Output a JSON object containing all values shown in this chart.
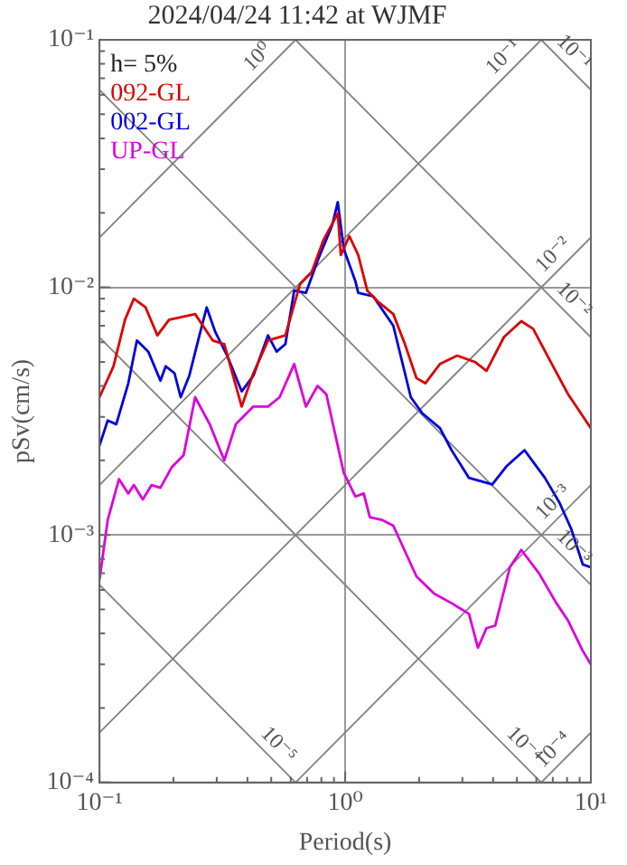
{
  "chart_data": {
    "type": "line",
    "title": "2024/04/24 11:42 at WJMF",
    "xlabel": "Period(s)",
    "ylabel": "pSv(cm/s)",
    "legend_title": "h= 5%",
    "legend": "top left",
    "log": "xy",
    "grid": true,
    "xlim": [
      0.1,
      10
    ],
    "ylim": [
      0.0001,
      0.1
    ],
    "xticks": [
      {
        "value": 0.1,
        "label": "10⁻¹"
      },
      {
        "value": 0.2,
        "label": null
      },
      {
        "value": 0.3,
        "label": null
      },
      {
        "value": 0.4,
        "label": null
      },
      {
        "value": 0.5,
        "label": null
      },
      {
        "value": 0.6,
        "label": null
      },
      {
        "value": 0.7,
        "label": null
      },
      {
        "value": 0.8,
        "label": null
      },
      {
        "value": 0.9,
        "label": null
      },
      {
        "value": 1,
        "label": "10⁰"
      },
      {
        "value": 2,
        "label": null
      },
      {
        "value": 3,
        "label": null
      },
      {
        "value": 4,
        "label": null
      },
      {
        "value": 5,
        "label": null
      },
      {
        "value": 6,
        "label": null
      },
      {
        "value": 7,
        "label": null
      },
      {
        "value": 8,
        "label": null
      },
      {
        "value": 9,
        "label": null
      },
      {
        "value": 10,
        "label": "10¹"
      }
    ],
    "yticks": [
      {
        "value": 0.0001,
        "label": "10⁻⁴"
      },
      {
        "value": 0.0002,
        "label": null
      },
      {
        "value": 0.0003,
        "label": null
      },
      {
        "value": 0.0004,
        "label": null
      },
      {
        "value": 0.0005,
        "label": null
      },
      {
        "value": 0.0006,
        "label": null
      },
      {
        "value": 0.0007,
        "label": null
      },
      {
        "value": 0.0008,
        "label": null
      },
      {
        "value": 0.0009,
        "label": null
      },
      {
        "value": 0.001,
        "label": "10⁻³"
      },
      {
        "value": 0.002,
        "label": null
      },
      {
        "value": 0.003,
        "label": null
      },
      {
        "value": 0.004,
        "label": null
      },
      {
        "value": 0.005,
        "label": null
      },
      {
        "value": 0.006,
        "label": null
      },
      {
        "value": 0.007,
        "label": null
      },
      {
        "value": 0.008,
        "label": null
      },
      {
        "value": 0.009,
        "label": null
      },
      {
        "value": 0.01,
        "label": "10⁻²"
      },
      {
        "value": 0.02,
        "label": null
      },
      {
        "value": 0.03,
        "label": null
      },
      {
        "value": 0.04,
        "label": null
      },
      {
        "value": 0.05,
        "label": null
      },
      {
        "value": 0.06,
        "label": null
      },
      {
        "value": 0.07,
        "label": null
      },
      {
        "value": 0.08,
        "label": null
      },
      {
        "value": 0.09,
        "label": null
      },
      {
        "value": 0.1,
        "label": "10⁻¹"
      }
    ],
    "series": [
      {
        "name": "092-GL",
        "color": "#dd0000",
        "x": [
          0.1,
          0.114,
          0.127,
          0.138,
          0.154,
          0.172,
          0.192,
          0.245,
          0.289,
          0.322,
          0.379,
          0.423,
          0.485,
          0.571,
          0.655,
          0.73,
          0.815,
          0.933,
          0.96,
          1.04,
          1.13,
          1.23,
          1.37,
          1.57,
          1.75,
          1.95,
          2.12,
          2.43,
          2.86,
          3.37,
          3.76,
          4.43,
          5.21,
          5.82,
          6.86,
          8.08,
          10
        ],
        "values": [
          0.0036,
          0.0048,
          0.0074,
          0.009,
          0.0083,
          0.0064,
          0.0074,
          0.0078,
          0.0061,
          0.0059,
          0.0033,
          0.0045,
          0.0061,
          0.0064,
          0.0103,
          0.0115,
          0.0155,
          0.0199,
          0.0135,
          0.0161,
          0.0135,
          0.0097,
          0.0087,
          0.0078,
          0.0059,
          0.0043,
          0.0041,
          0.0049,
          0.0053,
          0.005,
          0.0046,
          0.0063,
          0.0073,
          0.0068,
          0.005,
          0.0037,
          0.0027
        ]
      },
      {
        "name": "002-GL",
        "color": "#0000dd",
        "x": [
          0.1,
          0.108,
          0.117,
          0.131,
          0.142,
          0.158,
          0.177,
          0.186,
          0.202,
          0.214,
          0.232,
          0.252,
          0.273,
          0.296,
          0.331,
          0.379,
          0.423,
          0.485,
          0.526,
          0.571,
          0.62,
          0.692,
          0.772,
          0.885,
          0.933,
          0.987,
          1.1,
          1.13,
          1.3,
          1.57,
          1.85,
          2.06,
          2.43,
          2.71,
          3.19,
          3.97,
          4.55,
          5.37,
          6.5,
          7.45,
          8.31,
          9.27,
          10
        ],
        "values": [
          0.0023,
          0.0029,
          0.0028,
          0.0041,
          0.0061,
          0.0055,
          0.0042,
          0.0048,
          0.0045,
          0.0036,
          0.0044,
          0.0061,
          0.0083,
          0.0066,
          0.0053,
          0.0038,
          0.0044,
          0.0064,
          0.0055,
          0.0059,
          0.0097,
          0.0095,
          0.0128,
          0.0178,
          0.0221,
          0.0143,
          0.0106,
          0.0095,
          0.0092,
          0.007,
          0.0036,
          0.0031,
          0.0027,
          0.0022,
          0.0017,
          0.0016,
          0.0019,
          0.0022,
          0.0017,
          0.00135,
          0.00106,
          0.00076,
          0.00074
        ]
      },
      {
        "name": "UP-GL",
        "color": "#dd00dd",
        "x": [
          0.1,
          0.108,
          0.12,
          0.131,
          0.138,
          0.15,
          0.163,
          0.177,
          0.197,
          0.22,
          0.245,
          0.281,
          0.322,
          0.359,
          0.423,
          0.485,
          0.541,
          0.62,
          0.692,
          0.772,
          0.838,
          0.987,
          1.1,
          1.19,
          1.26,
          1.41,
          1.57,
          1.95,
          2.3,
          2.71,
          3.19,
          3.47,
          3.76,
          4.08,
          4.68,
          5.21,
          6.15,
          7.24,
          8.08,
          9.27,
          10
        ],
        "values": [
          0.00066,
          0.00115,
          0.00168,
          0.00147,
          0.00159,
          0.00139,
          0.00159,
          0.00155,
          0.00188,
          0.0021,
          0.0036,
          0.0028,
          0.002,
          0.0028,
          0.0033,
          0.0033,
          0.0036,
          0.0049,
          0.0033,
          0.004,
          0.0037,
          0.00178,
          0.00143,
          0.00147,
          0.00118,
          0.00115,
          0.00109,
          0.00068,
          0.00058,
          0.00053,
          0.00048,
          0.00035,
          0.00042,
          0.00043,
          0.00074,
          0.00087,
          0.0007,
          0.00053,
          0.00045,
          0.00034,
          0.0003
        ]
      },
      {
        "color": "#808080",
        "x": [
          0.1,
          0.628
        ],
        "values": [
          0.0159,
          0.1
        ]
      },
      {
        "color": "#808080",
        "x": [
          0.1,
          6.28
        ],
        "values": [
          0.00159,
          0.1
        ]
      },
      {
        "color": "#808080",
        "x": [
          0.1,
          10
        ],
        "values": [
          0.000159,
          0.0159
        ]
      },
      {
        "color": "#808080",
        "x": [
          0.628,
          10
        ],
        "values": [
          0.0001,
          0.00159
        ]
      },
      {
        "color": "#808080",
        "x": [
          6.28,
          10
        ],
        "values": [
          0.0001,
          0.000159
        ]
      },
      {
        "color": "#808080",
        "x": [
          6.28,
          10
        ],
        "values": [
          0.1,
          0.0628
        ]
      },
      {
        "color": "#808080",
        "x": [
          0.628,
          10
        ],
        "values": [
          0.1,
          0.00628
        ]
      },
      {
        "color": "#808080",
        "x": [
          0.1,
          10
        ],
        "values": [
          0.0628,
          0.000628
        ]
      },
      {
        "color": "#808080",
        "x": [
          0.1,
          6.28
        ],
        "values": [
          0.00628,
          0.0001
        ]
      },
      {
        "color": "#808080",
        "x": [
          0.1,
          0.628
        ],
        "values": [
          0.000628,
          0.0001
        ]
      }
    ],
    "annotations": [
      {
        "text": "10⁰",
        "x": 0.486,
        "y": 0.0774
      },
      {
        "text": "10⁻¹",
        "x": 4.86,
        "y": 0.0774
      },
      {
        "text": "10⁻²",
        "x": 7.74,
        "y": 0.0123
      },
      {
        "text": "10⁻³",
        "x": 7.74,
        "y": 0.00123
      },
      {
        "text": "10⁻⁴",
        "x": 7.74,
        "y": 0.000123
      },
      {
        "text": "10⁻¹",
        "x": 7.74,
        "y": 0.081
      },
      {
        "text": "10⁻²",
        "x": 7.74,
        "y": 0.0081
      },
      {
        "text": "10⁻³",
        "x": 7.74,
        "y": 0.00081
      },
      {
        "text": "10⁻⁴",
        "x": 4.86,
        "y": 0.000129
      },
      {
        "text": "10⁻⁵",
        "x": 0.486,
        "y": 0.000129
      }
    ]
  }
}
